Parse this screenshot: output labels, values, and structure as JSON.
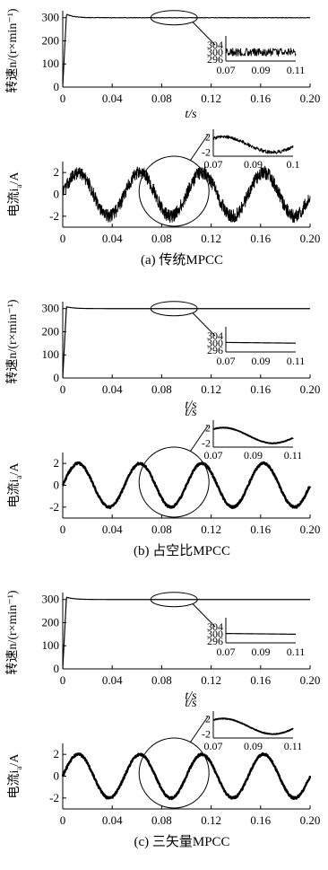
{
  "chart_data": [
    {
      "panel": "a",
      "caption": "(a) 传统MPCC",
      "subplots": [
        {
          "type": "line",
          "ylabel": "转速n/(r×min⁻¹)",
          "xlabel": "t/s",
          "xlim": [
            0,
            0.2
          ],
          "ylim": [
            0,
            330
          ],
          "x_ticks": [
            "0",
            "0.04",
            "0.08",
            "0.12",
            "0.16",
            "0.20"
          ],
          "y_ticks": [
            "0",
            "100",
            "200",
            "300"
          ],
          "y_tick_values": [
            0,
            100,
            200,
            300
          ],
          "series": [
            {
              "start": 0,
              "rise_time": 0.003,
              "peak": 315,
              "steady": 300,
              "ripple": "high"
            }
          ],
          "inset": {
            "x_ticks": [
              "0.07",
              "0.09",
              "0.11"
            ],
            "y_ticks": [
              "304",
              "300",
              "296"
            ],
            "y_tick_values": [
              304,
              300,
              296
            ],
            "xlim": [
              0.07,
              0.11
            ],
            "ylim": [
              295,
              305
            ],
            "series": [
              {
                "mean": 300,
                "ripple": 2.2
              }
            ]
          }
        },
        {
          "type": "line",
          "ylabel": "电流i",
          "ylabel_sub": "a",
          "ylabel_unit": "/A",
          "xlabel": "",
          "xlim": [
            0,
            0.2
          ],
          "ylim": [
            -3,
            3
          ],
          "x_ticks": [
            "0",
            "0.04",
            "0.08",
            "0.12",
            "0.16",
            "0.20"
          ],
          "y_ticks": [
            "2",
            "0",
            "-2"
          ],
          "y_tick_values": [
            2,
            0,
            -2
          ],
          "series": [
            {
              "amplitude": 2.0,
              "frequency": 20,
              "phase": 0.0,
              "ripple": 0.6
            }
          ],
          "inset": {
            "x_ticks": [
              "0.07",
              "0.09",
              "0.1"
            ],
            "y_ticks": [
              "2",
              "-2"
            ],
            "y_tick_values": [
              2,
              -2
            ],
            "xlim": [
              0.07,
              0.11
            ],
            "ylim": [
              -3,
              3
            ],
            "series": [
              {
                "amplitude": 2.0,
                "frequency": 20,
                "phase": 0.0,
                "ripple": 0.45
              }
            ]
          }
        }
      ]
    },
    {
      "panel": "b",
      "caption": "(b) 占空比MPCC",
      "subplots": [
        {
          "type": "line",
          "ylabel": "转速n/(r×min⁻¹)",
          "xlabel": "t/s",
          "xlim": [
            0,
            0.2
          ],
          "ylim": [
            0,
            330
          ],
          "x_ticks": [
            "0",
            "0.04",
            "0.08",
            "0.12",
            "0.16",
            "0.20"
          ],
          "y_ticks": [
            "0",
            "100",
            "200",
            "300"
          ],
          "y_tick_values": [
            0,
            100,
            200,
            300
          ],
          "series": [
            {
              "start": 0,
              "rise_time": 0.003,
              "peak": 308,
              "steady": 300,
              "ripple": "low"
            }
          ],
          "inset": {
            "x_ticks": [
              "0.07",
              "0.09",
              "0.11"
            ],
            "y_ticks": [
              "304",
              "300",
              "296"
            ],
            "y_tick_values": [
              304,
              300,
              296
            ],
            "xlim": [
              0.07,
              0.11
            ],
            "ylim": [
              295,
              305
            ],
            "series": [
              {
                "start": 300.3,
                "end": 299.9
              }
            ]
          }
        },
        {
          "type": "line",
          "ylabel": "电流i",
          "ylabel_sub": "a",
          "ylabel_unit": "/A",
          "xlabel": "t/s",
          "xlim": [
            0,
            0.2
          ],
          "ylim": [
            -3,
            3
          ],
          "x_ticks": [
            "0",
            "0.04",
            "0.08",
            "0.12",
            "0.16",
            "0.20"
          ],
          "y_ticks": [
            "2",
            "0",
            "-2"
          ],
          "y_tick_values": [
            2,
            0,
            -2
          ],
          "series": [
            {
              "amplitude": 2.0,
              "frequency": 20,
              "phase": 0.0,
              "ripple": 0.1
            }
          ],
          "inset": {
            "x_ticks": [
              "0.07",
              "0.09",
              "0.11"
            ],
            "y_ticks": [
              "2",
              "-2"
            ],
            "y_tick_values": [
              2,
              -2
            ],
            "xlim": [
              0.07,
              0.11
            ],
            "ylim": [
              -3,
              3
            ],
            "series": [
              {
                "amplitude": 2.0,
                "frequency": 20,
                "phase": 0.0,
                "ripple": 0.08
              }
            ]
          }
        }
      ]
    },
    {
      "panel": "c",
      "caption": "(c) 三矢量MPCC",
      "subplots": [
        {
          "type": "line",
          "ylabel": "转速n/(r×min⁻¹)",
          "xlabel": "t/s",
          "xlim": [
            0,
            0.2
          ],
          "ylim": [
            0,
            330
          ],
          "x_ticks": [
            "0",
            "0.04",
            "0.08",
            "0.12",
            "0.16",
            "0.20"
          ],
          "y_ticks": [
            "0",
            "100",
            "200",
            "300"
          ],
          "y_tick_values": [
            0,
            100,
            200,
            300
          ],
          "series": [
            {
              "start": 0,
              "rise_time": 0.003,
              "peak": 310,
              "steady": 300,
              "ripple": "low"
            }
          ],
          "inset": {
            "x_ticks": [
              "0.07",
              "0.09",
              "0.11"
            ],
            "y_ticks": [
              "304",
              "300",
              "296"
            ],
            "y_tick_values": [
              304,
              300,
              296
            ],
            "xlim": [
              0.07,
              0.11
            ],
            "ylim": [
              295,
              305
            ],
            "series": [
              {
                "start": 300.2,
                "end": 299.8
              }
            ]
          }
        },
        {
          "type": "line",
          "ylabel": "电流i",
          "ylabel_sub": "a",
          "ylabel_unit": "/A",
          "xlabel": "t/s",
          "xlim": [
            0,
            0.2
          ],
          "ylim": [
            -3,
            3
          ],
          "x_ticks": [
            "0",
            "0.04",
            "0.08",
            "0.12",
            "0.16",
            "0.20"
          ],
          "y_ticks": [
            "2",
            "0",
            "-2"
          ],
          "y_tick_values": [
            2,
            0,
            -2
          ],
          "series": [
            {
              "amplitude": 2.0,
              "frequency": 20,
              "phase": 0.0,
              "ripple": 0.1
            }
          ],
          "inset": {
            "x_ticks": [
              "0.07",
              "0.09",
              "0.11"
            ],
            "y_ticks": [
              "2",
              "-2"
            ],
            "y_tick_values": [
              2,
              -2
            ],
            "xlim": [
              0.07,
              0.11
            ],
            "ylim": [
              -3,
              3
            ],
            "series": [
              {
                "amplitude": 2.0,
                "frequency": 20,
                "phase": 0.0,
                "ripple": 0.08
              }
            ]
          }
        }
      ]
    }
  ]
}
